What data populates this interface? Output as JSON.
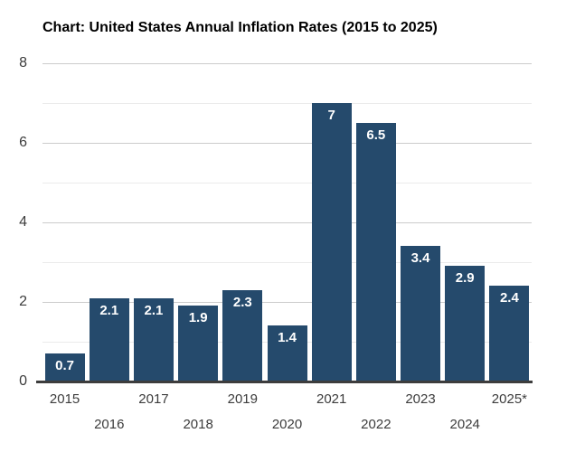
{
  "chart_data": {
    "type": "bar",
    "title": "Chart: United States Annual Inflation Rates (2015 to 2025)",
    "categories": [
      "2015",
      "2016",
      "2017",
      "2018",
      "2019",
      "2020",
      "2021",
      "2022",
      "2023",
      "2024",
      "2025*"
    ],
    "values": [
      0.7,
      2.1,
      2.1,
      1.9,
      2.3,
      1.4,
      7,
      6.5,
      3.4,
      2.9,
      2.4
    ],
    "xlabel": "",
    "ylabel": "",
    "ylim": [
      0,
      8
    ],
    "yticks_major": [
      0,
      2,
      4,
      6,
      8
    ],
    "yticks_minor": [
      1,
      3,
      5,
      7
    ],
    "grid": true,
    "legend": false,
    "value_labels_inside_bars": true,
    "x_labels_staggered_two_rows": true,
    "colors": {
      "bar": "#254a6c",
      "value_label": "#ffffff",
      "title": "#000000",
      "tick_label": "#3c3c3c",
      "gridline_major": "#cccccc",
      "gridline_minor": "#ebebeb",
      "axis_line": "#3d3d3d",
      "background": "#ffffff"
    }
  }
}
